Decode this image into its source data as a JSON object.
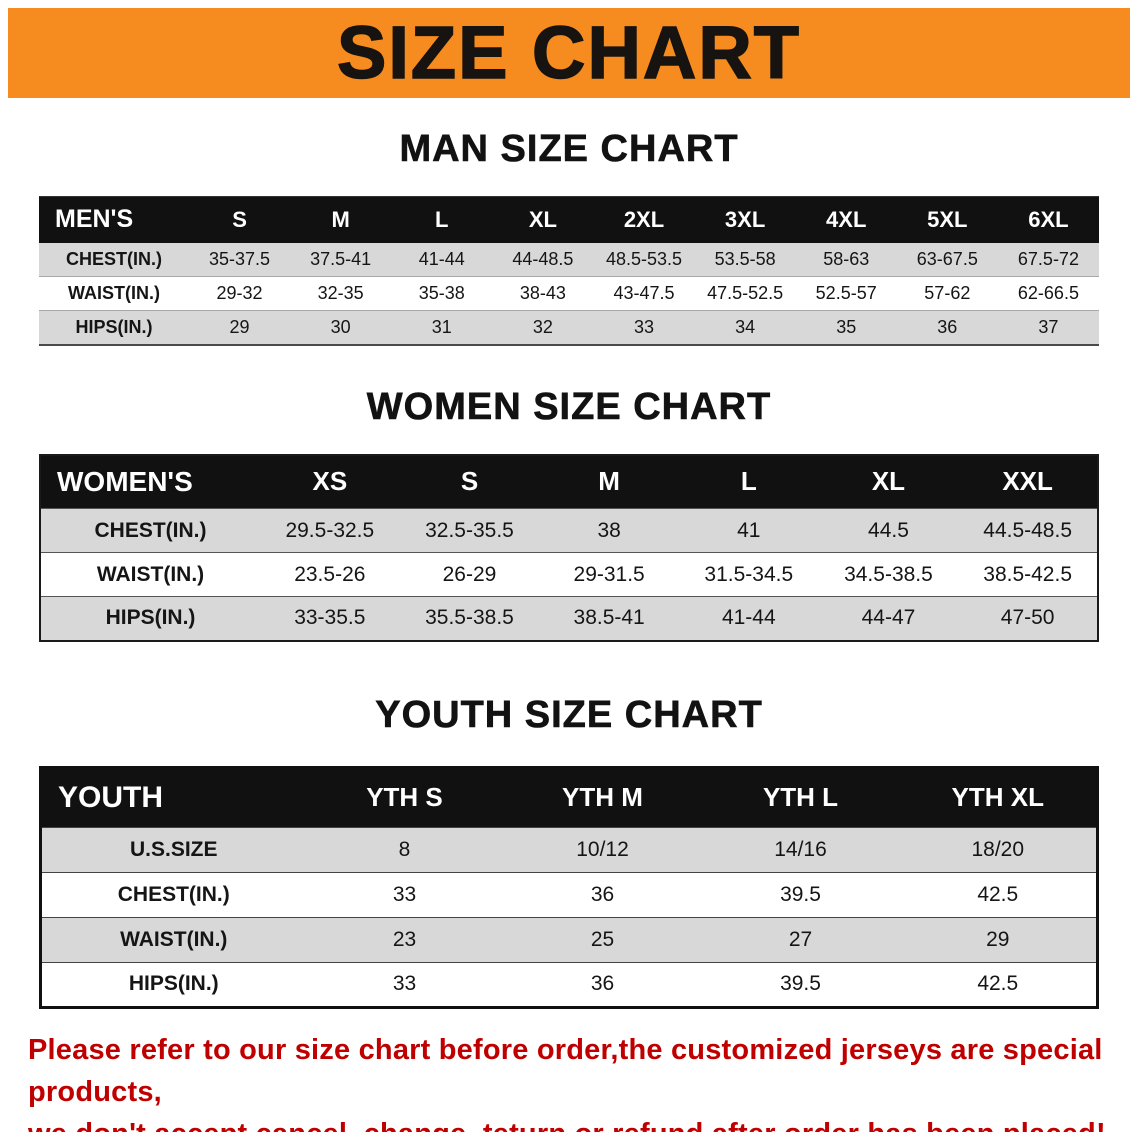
{
  "banner": {
    "title": "SIZE CHART"
  },
  "sections": [
    {
      "id": "men",
      "title": "MAN SIZE CHART",
      "header": [
        "MEN'S",
        "S",
        "M",
        "L",
        "XL",
        "2XL",
        "3XL",
        "4XL",
        "5XL",
        "6XL"
      ],
      "rows": [
        [
          "CHEST(IN.)",
          "35-37.5",
          "37.5-41",
          "41-44",
          "44-48.5",
          "48.5-53.5",
          "53.5-58",
          "58-63",
          "63-67.5",
          "67.5-72"
        ],
        [
          "WAIST(IN.)",
          "29-32",
          "32-35",
          "35-38",
          "38-43",
          "43-47.5",
          "47.5-52.5",
          "52.5-57",
          "57-62",
          "62-66.5"
        ],
        [
          "HIPS(IN.)",
          "29",
          "30",
          "31",
          "32",
          "33",
          "34",
          "35",
          "36",
          "37"
        ]
      ]
    },
    {
      "id": "women",
      "title": "WOMEN SIZE CHART",
      "header": [
        "WOMEN'S",
        "XS",
        "S",
        "M",
        "L",
        "XL",
        "XXL"
      ],
      "rows": [
        [
          "CHEST(IN.)",
          "29.5-32.5",
          "32.5-35.5",
          "38",
          "41",
          "44.5",
          "44.5-48.5"
        ],
        [
          "WAIST(IN.)",
          "23.5-26",
          "26-29",
          "29-31.5",
          "31.5-34.5",
          "34.5-38.5",
          "38.5-42.5"
        ],
        [
          "HIPS(IN.)",
          "33-35.5",
          "35.5-38.5",
          "38.5-41",
          "41-44",
          "44-47",
          "47-50"
        ]
      ]
    },
    {
      "id": "youth",
      "title": "YOUTH SIZE CHART",
      "header": [
        "YOUTH",
        "YTH S",
        "YTH M",
        "YTH L",
        "YTH XL"
      ],
      "rows": [
        [
          "U.S.SIZE",
          "8",
          "10/12",
          "14/16",
          "18/20"
        ],
        [
          "CHEST(IN.)",
          "33",
          "36",
          "39.5",
          "42.5"
        ],
        [
          "WAIST(IN.)",
          "23",
          "25",
          "27",
          "29"
        ],
        [
          "HIPS(IN.)",
          "33",
          "36",
          "39.5",
          "42.5"
        ]
      ]
    }
  ],
  "disclaimer": {
    "line1": "Please refer to our size chart before order,the customized jerseys are special products,",
    "line2": "we don't accept cancel, change, teturn or refund after order has been placed!"
  },
  "colors": {
    "banner": "#f68b1f",
    "header_bg": "#111111",
    "row_alt": "#d8d8d8",
    "disclaimer": "#c00000"
  }
}
